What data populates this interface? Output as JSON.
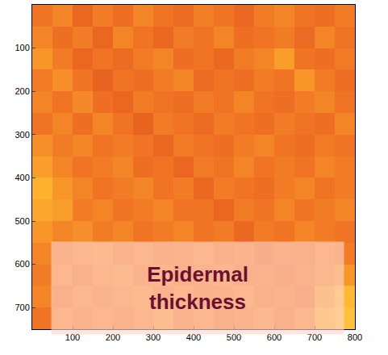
{
  "chart_data": {
    "type": "heatmap",
    "x": [
      25,
      75,
      125,
      175,
      225,
      275,
      325,
      375,
      425,
      475,
      525,
      575,
      625,
      675,
      725,
      775
    ],
    "y": [
      25,
      75,
      125,
      175,
      225,
      275,
      325,
      375,
      425,
      475,
      525,
      575,
      625,
      675,
      725
    ],
    "z": [
      [
        0.5,
        0.55,
        0.45,
        0.52,
        0.48,
        0.55,
        0.5,
        0.47,
        0.53,
        0.5,
        0.46,
        0.52,
        0.55,
        0.5,
        0.48,
        0.52
      ],
      [
        0.55,
        0.48,
        0.52,
        0.45,
        0.55,
        0.5,
        0.46,
        0.52,
        0.5,
        0.55,
        0.48,
        0.5,
        0.52,
        0.47,
        0.55,
        0.5
      ],
      [
        0.6,
        0.52,
        0.45,
        0.5,
        0.47,
        0.52,
        0.55,
        0.48,
        0.5,
        0.46,
        0.52,
        0.55,
        0.62,
        0.5,
        0.48,
        0.52
      ],
      [
        0.52,
        0.58,
        0.5,
        0.44,
        0.5,
        0.48,
        0.52,
        0.55,
        0.47,
        0.5,
        0.48,
        0.52,
        0.5,
        0.6,
        0.52,
        0.48
      ],
      [
        0.55,
        0.5,
        0.56,
        0.48,
        0.45,
        0.52,
        0.5,
        0.48,
        0.52,
        0.5,
        0.55,
        0.5,
        0.48,
        0.52,
        0.55,
        0.5
      ],
      [
        0.5,
        0.55,
        0.48,
        0.55,
        0.5,
        0.44,
        0.52,
        0.5,
        0.47,
        0.52,
        0.5,
        0.48,
        0.52,
        0.5,
        0.48,
        0.55
      ],
      [
        0.58,
        0.52,
        0.55,
        0.5,
        0.52,
        0.5,
        0.46,
        0.52,
        0.5,
        0.48,
        0.52,
        0.55,
        0.5,
        0.48,
        0.52,
        0.5
      ],
      [
        0.62,
        0.55,
        0.5,
        0.52,
        0.55,
        0.48,
        0.5,
        0.45,
        0.52,
        0.5,
        0.55,
        0.5,
        0.52,
        0.5,
        0.55,
        0.52
      ],
      [
        0.68,
        0.6,
        0.55,
        0.5,
        0.52,
        0.55,
        0.5,
        0.52,
        0.46,
        0.52,
        0.5,
        0.48,
        0.52,
        0.55,
        0.5,
        0.52
      ],
      [
        0.65,
        0.62,
        0.52,
        0.55,
        0.5,
        0.52,
        0.55,
        0.5,
        0.5,
        0.45,
        0.52,
        0.5,
        0.55,
        0.5,
        0.52,
        0.55
      ],
      [
        0.6,
        0.55,
        0.58,
        0.52,
        0.55,
        0.5,
        0.52,
        0.55,
        0.5,
        0.52,
        0.46,
        0.52,
        0.5,
        0.55,
        0.52,
        0.5
      ],
      [
        0.55,
        0.52,
        0.55,
        0.58,
        0.52,
        0.55,
        0.5,
        0.52,
        0.55,
        0.5,
        0.52,
        0.47,
        0.52,
        0.5,
        0.55,
        0.52
      ],
      [
        0.52,
        0.55,
        0.5,
        0.55,
        0.58,
        0.52,
        0.55,
        0.5,
        0.52,
        0.55,
        0.5,
        0.52,
        0.48,
        0.52,
        0.55,
        0.6
      ],
      [
        0.55,
        0.5,
        0.55,
        0.52,
        0.55,
        0.58,
        0.52,
        0.55,
        0.5,
        0.52,
        0.55,
        0.5,
        0.52,
        0.48,
        0.62,
        0.7
      ],
      [
        0.5,
        0.55,
        0.52,
        0.55,
        0.52,
        0.55,
        0.6,
        0.52,
        0.55,
        0.5,
        0.52,
        0.55,
        0.5,
        0.55,
        0.68,
        0.75
      ]
    ],
    "zlim": [
      0,
      1
    ],
    "xlim": [
      0,
      800
    ],
    "ylim": [
      750,
      0
    ],
    "xticks": [
      100,
      200,
      300,
      400,
      500,
      600,
      700,
      800
    ],
    "yticks": [
      100,
      200,
      300,
      400,
      500,
      600,
      700
    ],
    "annotations": [
      {
        "text": "Epidermal thickness"
      }
    ]
  }
}
